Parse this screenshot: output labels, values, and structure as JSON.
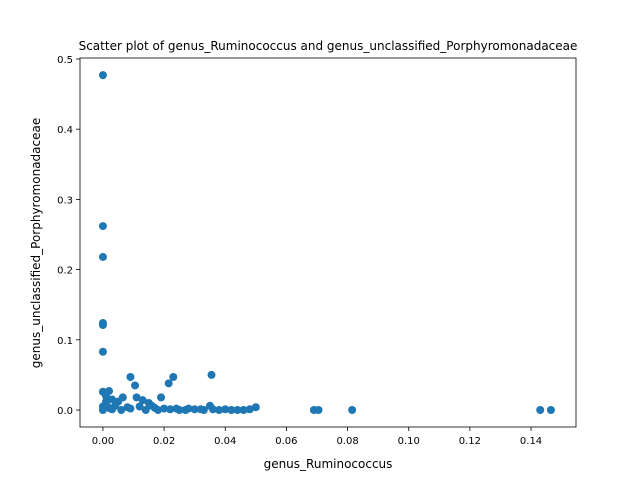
{
  "chart_data": {
    "type": "scatter",
    "title": "Scatter plot of genus_Ruminococcus and genus_unclassified_Porphyromonadaceae",
    "x_label": "genus_Ruminococcus",
    "y_label": "genus_unclassified_Porphyromonadaceae",
    "color": "#1f77b4",
    "xlim": [
      -0.0075,
      0.1547
    ],
    "ylim": [
      -0.0242,
      0.5014
    ],
    "xticks": [
      {
        "value": 0,
        "label": "0.00"
      },
      {
        "value": 0.02,
        "label": "0.02"
      },
      {
        "value": 0.04,
        "label": "0.04"
      },
      {
        "value": 0.06,
        "label": "0.06"
      },
      {
        "value": 0.08,
        "label": "0.08"
      },
      {
        "value": 0.1,
        "label": "0.10"
      },
      {
        "value": 0.12,
        "label": "0.12"
      },
      {
        "value": 0.14,
        "label": "0.14"
      }
    ],
    "yticks": [
      {
        "value": 0,
        "label": "0.0"
      },
      {
        "value": 0.1,
        "label": "0.1"
      },
      {
        "value": 0.2,
        "label": "0.2"
      },
      {
        "value": 0.3,
        "label": "0.3"
      },
      {
        "value": 0.4,
        "label": "0.4"
      },
      {
        "value": 0.5,
        "label": "0.5"
      }
    ],
    "x": [
      0,
      0,
      0,
      0,
      0,
      0,
      0,
      0.002,
      0.001,
      0.003,
      0.009,
      0.0105,
      0.023,
      0.0355,
      0.0215,
      0.019,
      0.011,
      0.0065,
      0.013,
      0.015,
      0.005,
      0.035,
      0.05,
      0.048,
      0.069,
      0.0705,
      0.0815,
      0.143,
      0.1465,
      0.046,
      0.042,
      0.04,
      0.038,
      0.033,
      0.03,
      0.027,
      0.025,
      0.02,
      0.017,
      0.012,
      0.008,
      0.004,
      0.002,
      0,
      0.001,
      0.003,
      0.006,
      0.009,
      0.014,
      0.016,
      0.022,
      0.028,
      0.001,
      0,
      0.0025,
      0.018,
      0.024,
      0.032,
      0.036,
      0.044
    ],
    "y": [
      0.477,
      0.262,
      0.218,
      0.124,
      0.121,
      0.083,
      0.026,
      0.027,
      0.02,
      0.015,
      0.047,
      0.035,
      0.047,
      0.05,
      0.038,
      0.018,
      0.018,
      0.018,
      0.014,
      0.01,
      0.012,
      0.006,
      0.004,
      0.001,
      0,
      0,
      0,
      0,
      0,
      0,
      0,
      0.001,
      0,
      0,
      0.001,
      0,
      0,
      0.002,
      0.003,
      0.005,
      0.004,
      0.006,
      0.003,
      0,
      0.008,
      0.001,
      0,
      0.002,
      0,
      0.006,
      0.001,
      0.002,
      0.012,
      0.005,
      0.002,
      0,
      0.002,
      0.001,
      0.001,
      0
    ]
  }
}
